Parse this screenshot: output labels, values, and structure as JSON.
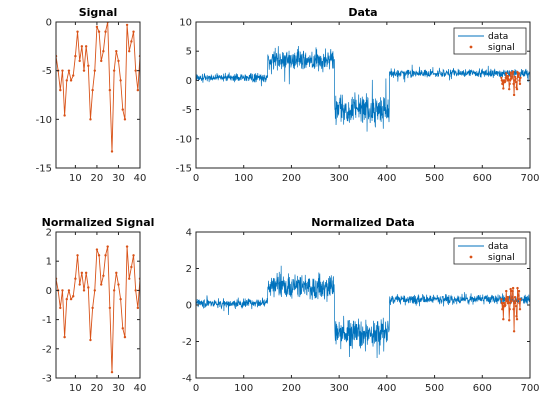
{
  "colors": {
    "data": "#0072BD",
    "signal": "#D95319",
    "axis": "#262626",
    "background": "#ffffff"
  },
  "chart_data": [
    {
      "id": "signal",
      "type": "line",
      "title": "Signal",
      "xlim": [
        1,
        40
      ],
      "ylim": [
        -15,
        0
      ],
      "xticks": [
        10,
        20,
        30,
        40
      ],
      "yticks": [
        -15,
        -10,
        -5,
        0
      ],
      "grid": false,
      "series": [
        {
          "color": "#D95319",
          "marker": "dot",
          "x": [
            1,
            2,
            3,
            4,
            5,
            6,
            7,
            8,
            9,
            10,
            11,
            12,
            13,
            14,
            15,
            16,
            17,
            18,
            19,
            20,
            21,
            22,
            23,
            24,
            25,
            26,
            27,
            28,
            29,
            30,
            31,
            32,
            33,
            34,
            35,
            36,
            37,
            38,
            39,
            40
          ],
          "values": [
            -3.5,
            -5,
            -7,
            -5,
            -9.6,
            -6,
            -5,
            -6,
            -5.5,
            -3.5,
            -1,
            -4,
            -2.5,
            -5,
            -2.5,
            -4.5,
            -10,
            -7,
            -5,
            -0.5,
            -1,
            -4,
            -3,
            -1,
            0,
            -7,
            -13.3,
            -5,
            -3,
            -4,
            -6,
            -9,
            -10,
            -0.3,
            -3,
            -2,
            -1,
            -5,
            -7,
            -3.5
          ]
        }
      ]
    },
    {
      "id": "data",
      "type": "line",
      "title": "Data",
      "xlim": [
        0,
        700
      ],
      "ylim": [
        -15,
        10
      ],
      "xticks": [
        0,
        100,
        200,
        300,
        400,
        500,
        600,
        700
      ],
      "yticks": [
        -15,
        -10,
        -5,
        0,
        5,
        10
      ],
      "grid": false,
      "legend": {
        "position": "top-right",
        "entries": [
          {
            "label": "data",
            "kind": "line"
          },
          {
            "label": "signal",
            "kind": "dot"
          }
        ]
      },
      "segments_description_data_units": [
        {
          "x": [
            0,
            150
          ],
          "mean": 0.5,
          "amplitude": 1.0
        },
        {
          "x": [
            150,
            290
          ],
          "mean": 3.5,
          "amplitude": 2.5
        },
        {
          "x": [
            290,
            405
          ],
          "mean": -5,
          "amplitude": 3.5
        },
        {
          "x": [
            405,
            700
          ],
          "mean": 1.2,
          "amplitude": 1.0
        }
      ],
      "signal_overlay": {
        "x_range": [
          640,
          680
        ],
        "values_from": "signal"
      }
    },
    {
      "id": "normalized-signal",
      "type": "line",
      "title": "Normalized Signal",
      "xlim": [
        1,
        40
      ],
      "ylim": [
        -3,
        2
      ],
      "xticks": [
        10,
        20,
        30,
        40
      ],
      "yticks": [
        -3,
        -2,
        -1,
        0,
        1,
        2
      ],
      "grid": false,
      "series": [
        {
          "color": "#D95319",
          "marker": "dot",
          "x": [
            1,
            2,
            3,
            4,
            5,
            6,
            7,
            8,
            9,
            10,
            11,
            12,
            13,
            14,
            15,
            16,
            17,
            18,
            19,
            20,
            21,
            22,
            23,
            24,
            25,
            26,
            27,
            28,
            29,
            30,
            31,
            32,
            33,
            34,
            35,
            36,
            37,
            38,
            39,
            40
          ],
          "values": [
            0.4,
            0.0,
            -0.6,
            0.0,
            -1.6,
            -0.3,
            0.0,
            -0.3,
            -0.2,
            0.4,
            1.2,
            0.2,
            0.6,
            0.0,
            0.6,
            0.1,
            -1.7,
            -0.6,
            0.0,
            1.4,
            1.2,
            0.2,
            0.5,
            1.2,
            1.5,
            -0.6,
            -2.8,
            0.0,
            0.6,
            0.2,
            -0.3,
            -1.3,
            -1.6,
            1.5,
            0.4,
            0.8,
            1.2,
            0.0,
            -0.6,
            0.4
          ]
        }
      ]
    },
    {
      "id": "normalized-data",
      "type": "line",
      "title": "Normalized Data",
      "xlim": [
        0,
        700
      ],
      "ylim": [
        -4,
        4
      ],
      "xticks": [
        0,
        100,
        200,
        300,
        400,
        500,
        600,
        700
      ],
      "yticks": [
        -4,
        -2,
        0,
        2,
        4
      ],
      "grid": false,
      "legend": {
        "position": "top-right",
        "entries": [
          {
            "label": "data",
            "kind": "line"
          },
          {
            "label": "signal",
            "kind": "dot"
          }
        ]
      },
      "segments_description_data_units": [
        {
          "x": [
            0,
            150
          ],
          "mean": 0.1,
          "amplitude": 0.35
        },
        {
          "x": [
            150,
            290
          ],
          "mean": 1.0,
          "amplitude": 0.9
        },
        {
          "x": [
            290,
            405
          ],
          "mean": -1.6,
          "amplitude": 1.2
        },
        {
          "x": [
            405,
            700
          ],
          "mean": 0.3,
          "amplitude": 0.35
        }
      ],
      "signal_overlay": {
        "x_range": [
          640,
          680
        ],
        "values_from": "normalized-signal"
      }
    }
  ]
}
